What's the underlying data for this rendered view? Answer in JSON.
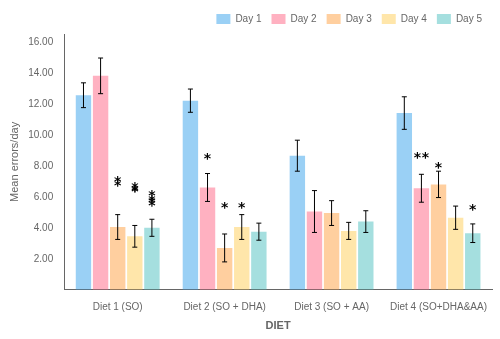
{
  "chart_data": {
    "type": "bar",
    "categories": [
      "Diet 1 (SO)",
      "Diet 2 (SO + DHA)",
      "Diet 3 (SO + AA)",
      "Diet 4 (SO+DHA&AA)"
    ],
    "series": [
      {
        "name": "Day 1",
        "values": [
          12.55,
          12.2,
          8.65,
          11.4
        ],
        "errors": [
          0.8,
          0.75,
          1.0,
          1.05
        ]
      },
      {
        "name": "Day 2",
        "values": [
          13.8,
          6.6,
          5.05,
          6.55
        ],
        "errors": [
          1.15,
          0.9,
          1.35,
          0.9
        ]
      },
      {
        "name": "Day 3",
        "values": [
          4.05,
          2.7,
          4.95,
          6.8
        ],
        "errors": [
          0.8,
          0.9,
          0.8,
          0.85
        ]
      },
      {
        "name": "Day 4",
        "values": [
          3.45,
          4.05,
          3.8,
          4.65
        ],
        "errors": [
          0.7,
          0.8,
          0.55,
          0.75
        ]
      },
      {
        "name": "Day 5",
        "values": [
          4.0,
          3.75,
          4.4,
          3.65
        ],
        "errors": [
          0.55,
          0.55,
          0.7,
          0.6
        ]
      }
    ],
    "xlabel": "DIET",
    "ylabel": "Mean errors/day",
    "ylim": [
      0,
      16.5
    ],
    "yticks": [
      {
        "value": 2,
        "label": "2.00"
      },
      {
        "value": 4,
        "label": "4.00"
      },
      {
        "value": 6,
        "label": "6.00"
      },
      {
        "value": 8,
        "label": "8.00"
      },
      {
        "value": 10,
        "label": "10.00"
      },
      {
        "value": 12,
        "label": "12.00"
      },
      {
        "value": 14,
        "label": "14.00"
      },
      {
        "value": 16,
        "label": "16.00"
      }
    ],
    "grid": false,
    "legend": "upper right",
    "annotations": [
      {
        "text": "*",
        "category": "Diet 1 (SO)",
        "series": "Day 3",
        "y": 7.15
      },
      {
        "text": "*",
        "category": "Diet 1 (SO)",
        "series": "Day 3",
        "y": 6.85
      },
      {
        "text": "*",
        "category": "Diet 1 (SO)",
        "series": "Day 4",
        "y": 6.55
      },
      {
        "text": "*",
        "category": "Diet 1 (SO)",
        "series": "Day 4",
        "y": 6.75
      },
      {
        "text": "*",
        "category": "Diet 1 (SO)",
        "series": "Day 4",
        "y": 6.5
      },
      {
        "text": "*",
        "category": "Diet 1 (SO)",
        "series": "Day 5",
        "y": 6.2
      },
      {
        "text": "*",
        "category": "Diet 1 (SO)",
        "series": "Day 5",
        "y": 5.9
      },
      {
        "text": "*",
        "category": "Diet 1 (SO)",
        "series": "Day 5",
        "y": 5.75
      },
      {
        "text": "*",
        "category": "Diet 1 (SO)",
        "series": "Day 5",
        "y": 5.55
      },
      {
        "text": "*",
        "category": "Diet 2 (SO + DHA)",
        "series": "Day 2",
        "y": 8.6
      },
      {
        "text": "*",
        "category": "Diet 2 (SO + DHA)",
        "series": "Day 3",
        "y": 5.45
      },
      {
        "text": "*",
        "category": "Diet 2 (SO + DHA)",
        "series": "Day 4",
        "y": 5.45
      },
      {
        "text": "*",
        "category": "Diet 4 (SO+DHA&AA)",
        "series": "Day 2",
        "y": 8.65
      },
      {
        "text": "*",
        "category": "Diet 4 (SO+DHA&AA)",
        "series": "Day 2",
        "y": 8.65
      },
      {
        "text": "*",
        "category": "Diet 4 (SO+DHA&AA)",
        "series": "Day 3",
        "y": 8.05
      },
      {
        "text": "*",
        "category": "Diet 4 (SO+DHA&AA)",
        "series": "Day 5",
        "y": 5.3
      }
    ]
  }
}
